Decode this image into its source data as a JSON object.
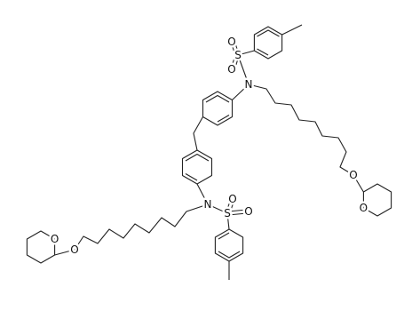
{
  "atoms": [
    "O",
    "O",
    "S",
    "N",
    "O",
    "O",
    "S",
    "O",
    "O",
    "N",
    "O",
    "O"
  ]
}
